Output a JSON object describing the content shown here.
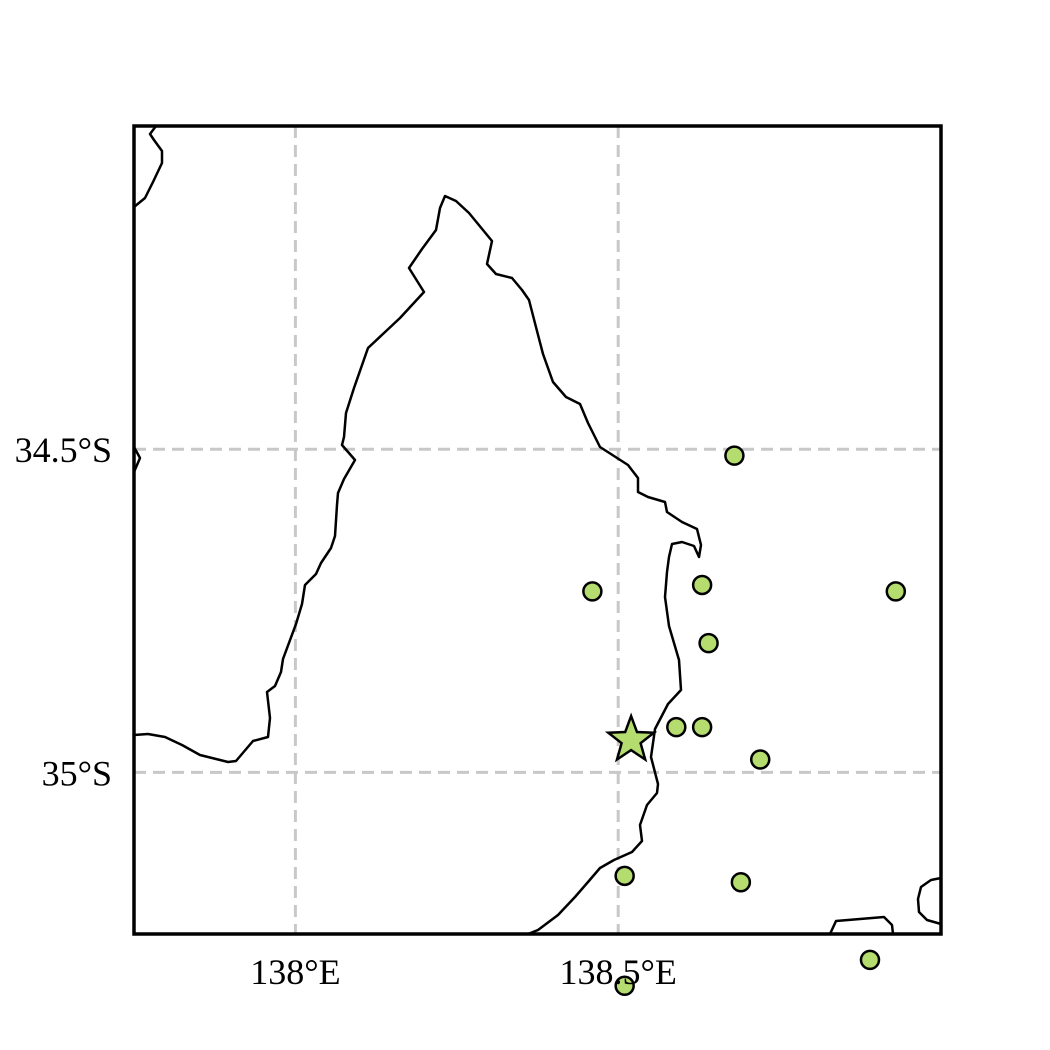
{
  "map": {
    "extent": {
      "lon_min": 137.75,
      "lon_max": 139.0,
      "lat_min": -35.25,
      "lat_max": -34.0
    },
    "gridlines_lon": [
      138.0,
      138.5
    ],
    "gridlines_lat": [
      -34.5,
      -35.0
    ],
    "x_tick_labels": [
      {
        "lon": 138.0,
        "text": "138°E"
      },
      {
        "lon": 138.5,
        "text": "138.5°E"
      }
    ],
    "y_tick_labels": [
      {
        "lat": -34.5,
        "text": "34.5°S"
      },
      {
        "lat": -35.0,
        "text": "35°S"
      }
    ],
    "colors": {
      "marker_fill": "#b5dc6e",
      "marker_edge": "#000000",
      "coastline": "#000000",
      "grid": "#c8c8c8"
    },
    "epicenter": {
      "lon": 138.52,
      "lat": -34.95,
      "marker": "star-icon"
    },
    "stations": [
      {
        "lon": 138.68,
        "lat": -34.51
      },
      {
        "lon": 138.63,
        "lat": -34.71
      },
      {
        "lon": 138.46,
        "lat": -34.72
      },
      {
        "lon": 138.93,
        "lat": -34.72
      },
      {
        "lon": 138.64,
        "lat": -34.8
      },
      {
        "lon": 138.59,
        "lat": -34.93
      },
      {
        "lon": 138.63,
        "lat": -34.93
      },
      {
        "lon": 138.72,
        "lat": -34.98
      },
      {
        "lon": 138.51,
        "lat": -35.16
      },
      {
        "lon": 138.69,
        "lat": -35.17
      },
      {
        "lon": 138.89,
        "lat": -35.29
      },
      {
        "lon": 138.51,
        "lat": -35.33
      }
    ]
  }
}
